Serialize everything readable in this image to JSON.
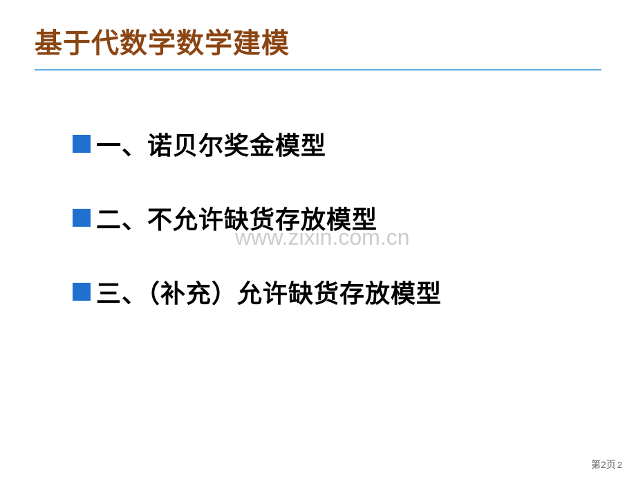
{
  "slide": {
    "title": "基于代数学数学建模",
    "title_color": "#8B4513",
    "underline_color": "#5DADE2",
    "bullet_color": "#2070D0",
    "items": [
      {
        "text": "一、诺贝尔奖金模型"
      },
      {
        "text": "二、不允许缺货存放模型"
      },
      {
        "text": "三、（补充）允许缺货存放模型"
      }
    ],
    "watermark": "www.zixin.com.cn",
    "footer": {
      "page_label": "第2页",
      "page_number": "2"
    },
    "background_color": "#ffffff",
    "text_color": "#000000",
    "title_fontsize": 40,
    "item_fontsize": 36
  }
}
